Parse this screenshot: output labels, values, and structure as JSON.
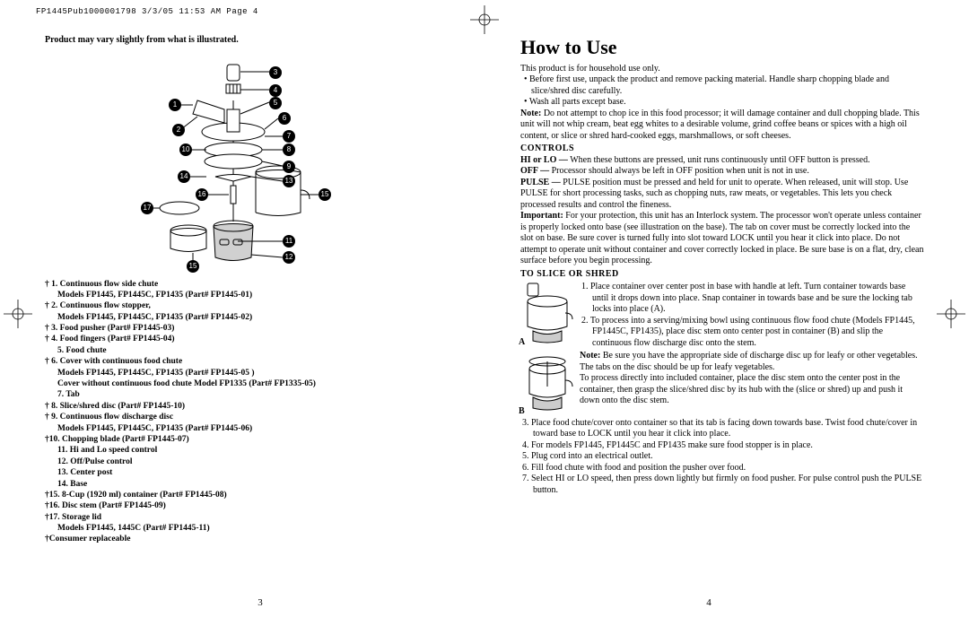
{
  "header": "FP1445Pub1000001798  3/3/05  11:53 AM  Page 4",
  "left": {
    "product_note": "Product may vary slightly from what is illustrated.",
    "labels": [
      "1",
      "2",
      "3",
      "4",
      "5",
      "6",
      "7",
      "8",
      "9",
      "10",
      "11",
      "12",
      "13",
      "14",
      "15",
      "16",
      "17"
    ],
    "parts": [
      {
        "b": "† 1. Continuous flow side chute"
      },
      {
        "sub": true,
        "b": "Models FP1445, FP1445C, FP1435 (Part# FP1445-01)"
      },
      {
        "b": "† 2. Continuous flow stopper,"
      },
      {
        "sub": true,
        "b": "Models FP1445, FP1445C, FP1435 (Part# FP1445-02)"
      },
      {
        "b": "† 3. Food pusher (Part# FP1445-03)"
      },
      {
        "b": "† 4. Food fingers (Part# FP1445-04)"
      },
      {
        "sub": true,
        "b": "5. Food chute"
      },
      {
        "b": "† 6. Cover with continuous food chute"
      },
      {
        "sub": true,
        "b": "Models FP1445, FP1445C, FP1435 (Part# FP1445-05 )"
      },
      {
        "sub": true,
        "b": "Cover without continuous food chute Model FP1335 (Part# FP1335-05)"
      },
      {
        "sub": true,
        "b": "7. Tab"
      },
      {
        "b": "† 8. Slice/shred disc (Part# FP1445-10)"
      },
      {
        "b": "† 9. Continuous flow discharge disc"
      },
      {
        "sub": true,
        "b": "Models FP1445, FP1445C, FP1435 (Part# FP1445-06)"
      },
      {
        "b": "†10. Chopping blade (Part# FP1445-07)"
      },
      {
        "sub": true,
        "b": "11. Hi and Lo speed control"
      },
      {
        "sub": true,
        "b": "12. Off/Pulse control"
      },
      {
        "sub": true,
        "b": "13. Center post"
      },
      {
        "sub": true,
        "b": "14. Base"
      },
      {
        "b": "†15. 8-Cup (1920 ml) container (Part# FP1445-08)"
      },
      {
        "b": "†16. Disc stem (Part# FP1445-09)"
      },
      {
        "b": "†17. Storage lid"
      },
      {
        "sub": true,
        "b": "Models FP1445, 1445C (Part# FP1445-11)"
      },
      {
        "b": "†Consumer replaceable"
      }
    ],
    "page_number": "3"
  },
  "right": {
    "title": "How to Use",
    "intro": "This product is for household use only.",
    "b1": "• Before first use, unpack the product and remove packing material. Handle sharp chopping blade and slice/shred disc carefully.",
    "b2": "• Wash all parts except base.",
    "note1_label": "Note:",
    "note1": " Do not attempt to chop ice in this food processor; it will damage container and dull chopping blade. This unit will not whip cream, beat egg whites to a desirable volume, grind coffee beans or spices with a high oil content, or slice or shred hard-cooked eggs, marshmallows, or soft cheeses.",
    "controls_head": "CONTROLS",
    "ctrl1_label": "HI or LO —",
    "ctrl1": " When these buttons are pressed, unit runs continuously until OFF button is pressed.",
    "ctrl2_label": "OFF —",
    "ctrl2": " Processor should always be left in OFF position when unit is not in use.",
    "ctrl3_label": "PULSE —",
    "ctrl3": " PULSE position must be pressed and held for unit to operate. When released, unit will stop. Use PULSE for short processing tasks, such as chopping nuts, raw meats, or vegetables. This lets you check processed results and control the fineness.",
    "important_label": "Important:",
    "important": " For your protection, this unit has an Interlock system. The processor won't operate unless container is properly locked onto base (see illustration on the base). The tab on cover must be correctly locked into the slot on base. Be sure cover is turned fully into slot toward LOCK until you hear it click into place. Do not attempt to operate unit without container and cover correctly locked in place. Be sure base is on a flat, dry, clean surface before you begin processing.",
    "slice_head": "TO SLICE OR SHRED",
    "step1": "1. Place container over center post in base with handle at left. Turn container towards base until it drops down into place. Snap container in towards base and be sure the locking tab locks into place (A).",
    "step2": "2. To process into a serving/mixing bowl using continuous flow food chute (Models FP1445, FP1445C, FP1435), place disc stem onto center post in container (B) and slip the continuous flow discharge disc onto the stem.",
    "note2_label": "Note:",
    "note2": " Be sure you have the appropriate side of discharge disc up for leafy or other vegetables. The tabs on the disc should be up for leafy vegetables.",
    "step2b": "To process directly into included container, place the disc stem onto the center post in the container, then grasp the slice/shred disc by its hub with the (slice or shred) up and push it down onto the disc stem.",
    "step3": "3. Place food chute/cover onto container so that its tab is facing down towards base. Twist food chute/cover in toward base to LOCK until you hear it click into place.",
    "step4": "4. For models FP1445, FP1445C and FP1435 make sure food stopper is in place.",
    "step5": "5. Plug cord into an electrical outlet.",
    "step6": "6. Fill food chute with food and position the pusher over food.",
    "step7": "7. Select HI or LO speed, then press down lightly but firmly on food pusher. For pulse control push the PULSE button.",
    "labelA": "A",
    "labelB": "B",
    "page_number": "4"
  }
}
